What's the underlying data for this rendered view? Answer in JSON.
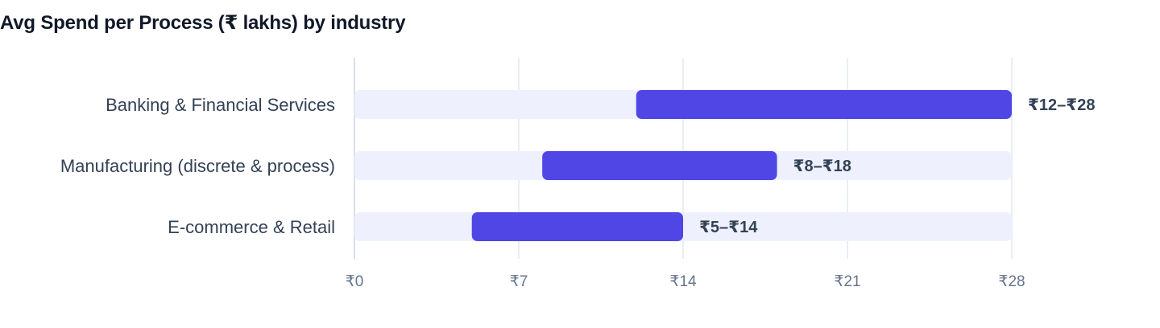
{
  "chart_data": {
    "type": "bar",
    "subtype": "range",
    "title": "Avg Spend per Process (₹ lakhs) by industry",
    "xlabel": "",
    "ylabel": "",
    "xlim": [
      0,
      28
    ],
    "ticks": [
      {
        "value": 0,
        "label": "₹0"
      },
      {
        "value": 7,
        "label": "₹7"
      },
      {
        "value": 14,
        "label": "₹14"
      },
      {
        "value": 21,
        "label": "₹21"
      },
      {
        "value": 28,
        "label": "₹28"
      }
    ],
    "categories": [
      "Banking & Financial Services",
      "Manufacturing (discrete & process)",
      "E-commerce & Retail"
    ],
    "ranges": [
      {
        "low": 12,
        "high": 28,
        "label": "₹12–₹28"
      },
      {
        "low": 8,
        "high": 18,
        "label": "₹8–₹18"
      },
      {
        "low": 5,
        "high": 14,
        "label": "₹5–₹14"
      }
    ],
    "grid": true,
    "colors": {
      "range_bar": "#4f46e5",
      "track": "#eef1fd",
      "grid": "#e2e8f0",
      "axis": "#cbd5e1"
    }
  }
}
